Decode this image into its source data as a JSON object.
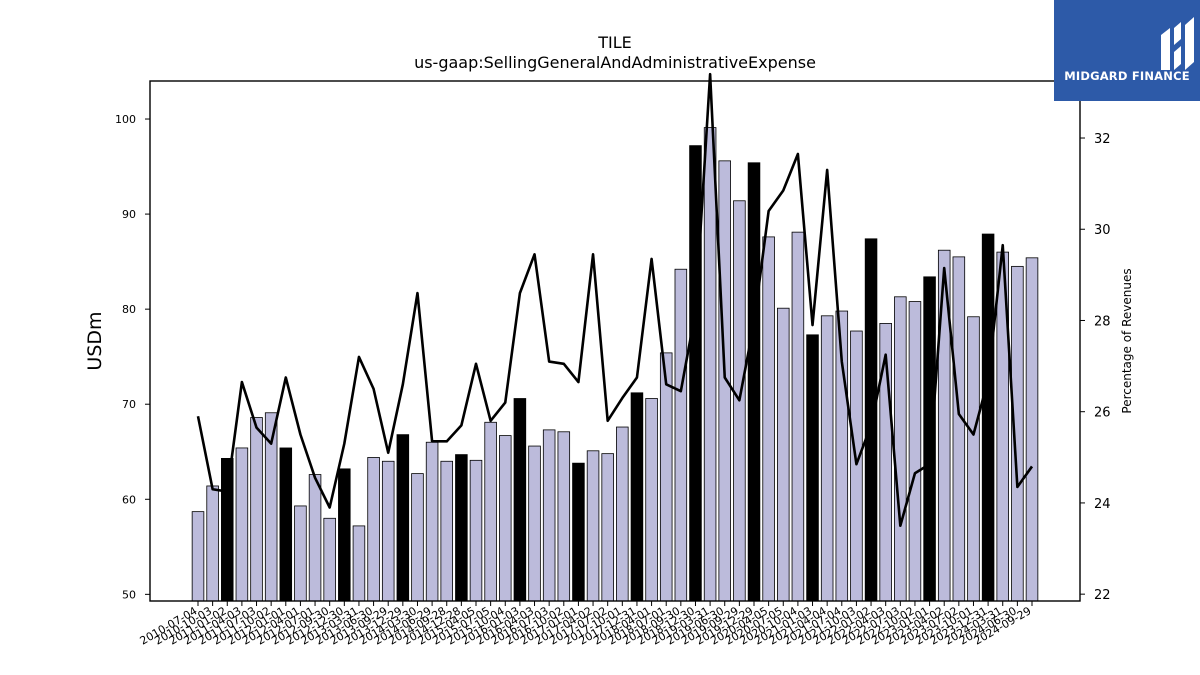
{
  "chart_data": {
    "type": "bar",
    "title": "TILE",
    "subtitle": "us-gaap:SellingGeneralAndAdministrativeExpense",
    "ylabel": "USDm",
    "y2label": "Percentage of Revenues",
    "ylim": [
      49.3,
      104
    ],
    "y2lim": [
      21.85,
      33.25
    ],
    "yticks": [
      50,
      60,
      70,
      80,
      90,
      100
    ],
    "y2ticks": [
      22,
      24,
      26,
      28,
      30,
      32
    ],
    "categories": [
      "2010-07-04",
      "2010-10-03",
      "2011-01-02",
      "2011-04-03",
      "2011-07-03",
      "2011-10-02",
      "2012-01-01",
      "2012-04-01",
      "2012-07-01",
      "2012-09-30",
      "2012-12-30",
      "2013-03-31",
      "2013-06-30",
      "2013-09-29",
      "2013-12-29",
      "2014-03-30",
      "2014-06-29",
      "2014-09-28",
      "2014-12-28",
      "2015-04-05",
      "2015-07-05",
      "2015-10-04",
      "2016-01-03",
      "2016-04-03",
      "2016-07-03",
      "2016-10-02",
      "2017-01-01",
      "2017-04-02",
      "2017-07-02",
      "2017-10-01",
      "2017-12-31",
      "2018-04-01",
      "2018-07-01",
      "2018-09-30",
      "2018-12-30",
      "2019-03-31",
      "2019-06-30",
      "2019-09-29",
      "2019-12-29",
      "2020-04-05",
      "2020-07-05",
      "2020-10-04",
      "2021-01-03",
      "2021-04-04",
      "2021-07-04",
      "2021-10-03",
      "2022-01-02",
      "2022-04-03",
      "2022-07-03",
      "2022-10-02",
      "2023-01-01",
      "2023-04-02",
      "2023-07-02",
      "2023-10-01",
      "2023-12-31",
      "2024-03-31",
      "2024-06-30",
      "2024-09-29"
    ],
    "series": [
      {
        "type": "bar",
        "values": [
          58.7,
          61.4,
          64.3,
          65.4,
          68.6,
          69.1,
          65.4,
          59.3,
          62.6,
          58.0,
          63.2,
          57.2,
          64.4,
          64.0,
          66.8,
          62.7,
          66.0,
          64.0,
          64.7,
          64.1,
          68.1,
          66.7,
          70.6,
          65.6,
          67.3,
          67.1,
          63.8,
          65.1,
          64.8,
          67.6,
          71.2,
          70.6,
          75.4,
          84.2,
          97.2,
          99.1,
          95.6,
          91.4,
          95.4,
          87.6,
          80.1,
          88.1,
          77.3,
          79.3,
          79.8,
          77.7,
          87.4,
          78.5,
          81.3,
          80.8,
          83.4,
          86.2,
          85.5,
          79.2,
          87.9,
          86.0,
          84.5,
          85.4
        ],
        "highlight": [
          false,
          false,
          true,
          false,
          false,
          false,
          true,
          false,
          false,
          false,
          true,
          false,
          false,
          false,
          true,
          false,
          false,
          false,
          true,
          false,
          false,
          false,
          true,
          false,
          false,
          false,
          true,
          false,
          false,
          false,
          true,
          false,
          false,
          false,
          true,
          false,
          false,
          false,
          true,
          false,
          false,
          false,
          true,
          false,
          false,
          false,
          true,
          false,
          false,
          false,
          true,
          false,
          false,
          false,
          true,
          false,
          false,
          false
        ],
        "color": "#bcbbdb",
        "highlight_color": "#000000"
      },
      {
        "type": "line",
        "axis": "right",
        "values": [
          25.9,
          24.3,
          24.25,
          26.65,
          25.65,
          25.3,
          26.75,
          25.5,
          24.55,
          23.9,
          25.3,
          27.2,
          26.5,
          25.1,
          26.6,
          28.6,
          25.35,
          25.35,
          25.7,
          27.05,
          25.8,
          26.2,
          28.6,
          29.45,
          27.1,
          27.05,
          26.65,
          29.45,
          25.8,
          26.3,
          26.75,
          29.35,
          26.6,
          26.45,
          28.2,
          33.4,
          26.75,
          26.25,
          27.95,
          30.4,
          30.85,
          31.65,
          27.9,
          31.3,
          27.1,
          24.85,
          25.7,
          27.25,
          23.5,
          24.65,
          24.85,
          29.15,
          25.95,
          25.5,
          26.7,
          29.65,
          24.35,
          24.8
        ],
        "color": "#000000"
      }
    ]
  },
  "logo": {
    "text": "MIDGARD FINANCE",
    "bg": "#2d5aa8",
    "icon": "midgard-logo-icon"
  }
}
